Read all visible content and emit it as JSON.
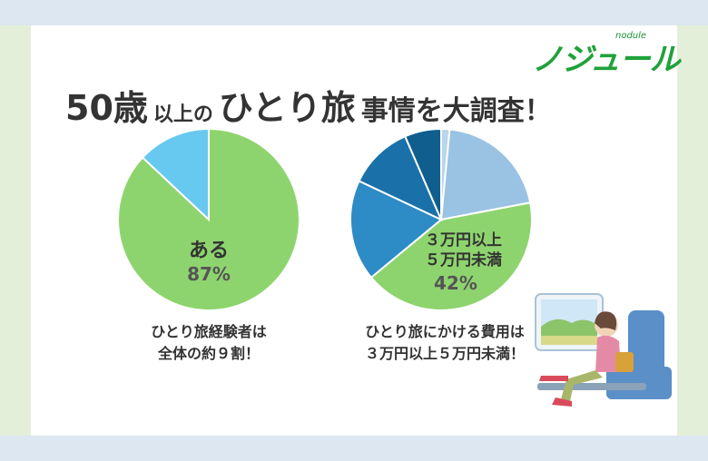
{
  "logo": {
    "brand": "ノジュール",
    "brand_sub": "nodule",
    "brand_color": "#1fa23a"
  },
  "title": {
    "part1": "50歳",
    "part2": "以上の",
    "part3": "ひとり旅",
    "part4": "事情を大調査！"
  },
  "chart_data": [
    {
      "type": "pie",
      "slices": [
        {
          "value": 87,
          "color": "#8ed46e"
        },
        {
          "value": 13,
          "color": "#67c9f0"
        }
      ],
      "annotation": {
        "label": "ある",
        "value": "87%"
      }
    },
    {
      "type": "pie",
      "slices": [
        {
          "value": 1.5,
          "color": "#b9d6ea"
        },
        {
          "value": 20.5,
          "color": "#9ac3e3"
        },
        {
          "value": 42,
          "color": "#8ed46e"
        },
        {
          "value": 18,
          "color": "#2d8bc6"
        },
        {
          "value": 11.5,
          "color": "#1a71a9"
        },
        {
          "value": 6.5,
          "color": "#0f5e8e"
        }
      ],
      "annotation": {
        "label_line1": "３万円以上",
        "label_line2": "５万円未満",
        "value": "42%"
      }
    }
  ],
  "captions": {
    "left_line1": "ひとり旅経験者は",
    "left_line2": "全体の約９割！",
    "right_line1": "ひとり旅にかける費用は",
    "right_line2": "３万円以上５万円未満！"
  },
  "colors": {
    "band_top": "#dce7f1",
    "band_side": "#e4efd9",
    "text": "#333333"
  }
}
